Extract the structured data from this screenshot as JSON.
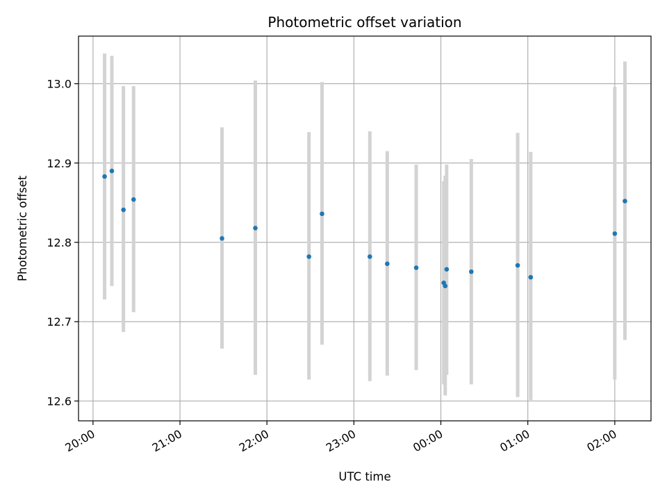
{
  "chart_data": {
    "type": "scatter",
    "title": "Photometric offset variation",
    "xlabel": "UTC time",
    "ylabel": "Photometric offset",
    "x_tick_labels": [
      "20:00",
      "21:00",
      "22:00",
      "23:00",
      "00:00",
      "01:00",
      "02:00"
    ],
    "y_ticks": [
      12.6,
      12.7,
      12.8,
      12.9,
      13.0
    ],
    "y_tick_labels": [
      "12.6",
      "12.7",
      "12.8",
      "12.9",
      "13.0"
    ],
    "xlim_minutes_from_20h": [
      -10,
      385
    ],
    "ylim": [
      12.575,
      13.06
    ],
    "grid": true,
    "colors": {
      "point": "#1f77b4",
      "errorbar": "#d3d3d3",
      "grid": "#b0b0b0"
    },
    "points": [
      {
        "t": "20:08",
        "y": 12.883,
        "yerr_low": 12.728,
        "yerr_high": 13.038
      },
      {
        "t": "20:13",
        "y": 12.89,
        "yerr_low": 12.745,
        "yerr_high": 13.035
      },
      {
        "t": "20:21",
        "y": 12.841,
        "yerr_low": 12.687,
        "yerr_high": 12.997
      },
      {
        "t": "20:28",
        "y": 12.854,
        "yerr_low": 12.712,
        "yerr_high": 12.997
      },
      {
        "t": "21:29",
        "y": 12.805,
        "yerr_low": 12.666,
        "yerr_high": 12.945
      },
      {
        "t": "21:52",
        "y": 12.818,
        "yerr_low": 12.633,
        "yerr_high": 13.004
      },
      {
        "t": "22:29",
        "y": 12.782,
        "yerr_low": 12.627,
        "yerr_high": 12.939
      },
      {
        "t": "22:38",
        "y": 12.836,
        "yerr_low": 12.671,
        "yerr_high": 13.002
      },
      {
        "t": "23:11",
        "y": 12.782,
        "yerr_low": 12.625,
        "yerr_high": 12.94
      },
      {
        "t": "23:23",
        "y": 12.773,
        "yerr_low": 12.632,
        "yerr_high": 12.915
      },
      {
        "t": "23:43",
        "y": 12.768,
        "yerr_low": 12.639,
        "yerr_high": 12.898
      },
      {
        "t": "00:02",
        "y": 12.749,
        "yerr_low": 12.621,
        "yerr_high": 12.877
      },
      {
        "t": "00:03",
        "y": 12.745,
        "yerr_low": 12.607,
        "yerr_high": 12.884
      },
      {
        "t": "00:04",
        "y": 12.766,
        "yerr_low": 12.633,
        "yerr_high": 12.898
      },
      {
        "t": "00:21",
        "y": 12.763,
        "yerr_low": 12.621,
        "yerr_high": 12.905
      },
      {
        "t": "00:53",
        "y": 12.771,
        "yerr_low": 12.605,
        "yerr_high": 12.938
      },
      {
        "t": "01:02",
        "y": 12.756,
        "yerr_low": 12.601,
        "yerr_high": 12.914
      },
      {
        "t": "02:00",
        "y": 12.811,
        "yerr_low": 12.627,
        "yerr_high": 12.996
      },
      {
        "t": "02:07",
        "y": 12.852,
        "yerr_low": 12.677,
        "yerr_high": 13.028
      }
    ]
  }
}
